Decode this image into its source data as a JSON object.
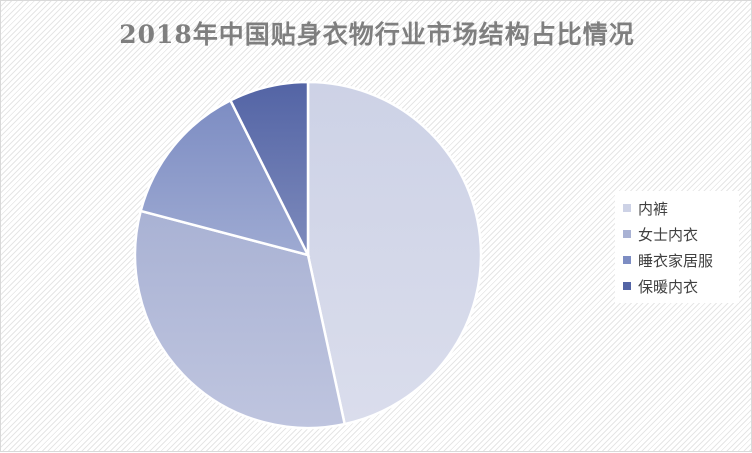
{
  "chart_data": {
    "type": "pie",
    "title": "2018年中国贴身衣物行业市场结构占比情况",
    "categories": [
      "内裤",
      "女士内衣",
      "睡衣家居服",
      "保暖内衣"
    ],
    "values": [
      46.6,
      32.5,
      13.5,
      7.4
    ],
    "unit": "%",
    "colors": [
      "#cdd2e6",
      "#a9b2d4",
      "#7d8dc3",
      "#5364a5"
    ],
    "legend_position": "right",
    "start_angle": "top, clockwise"
  }
}
